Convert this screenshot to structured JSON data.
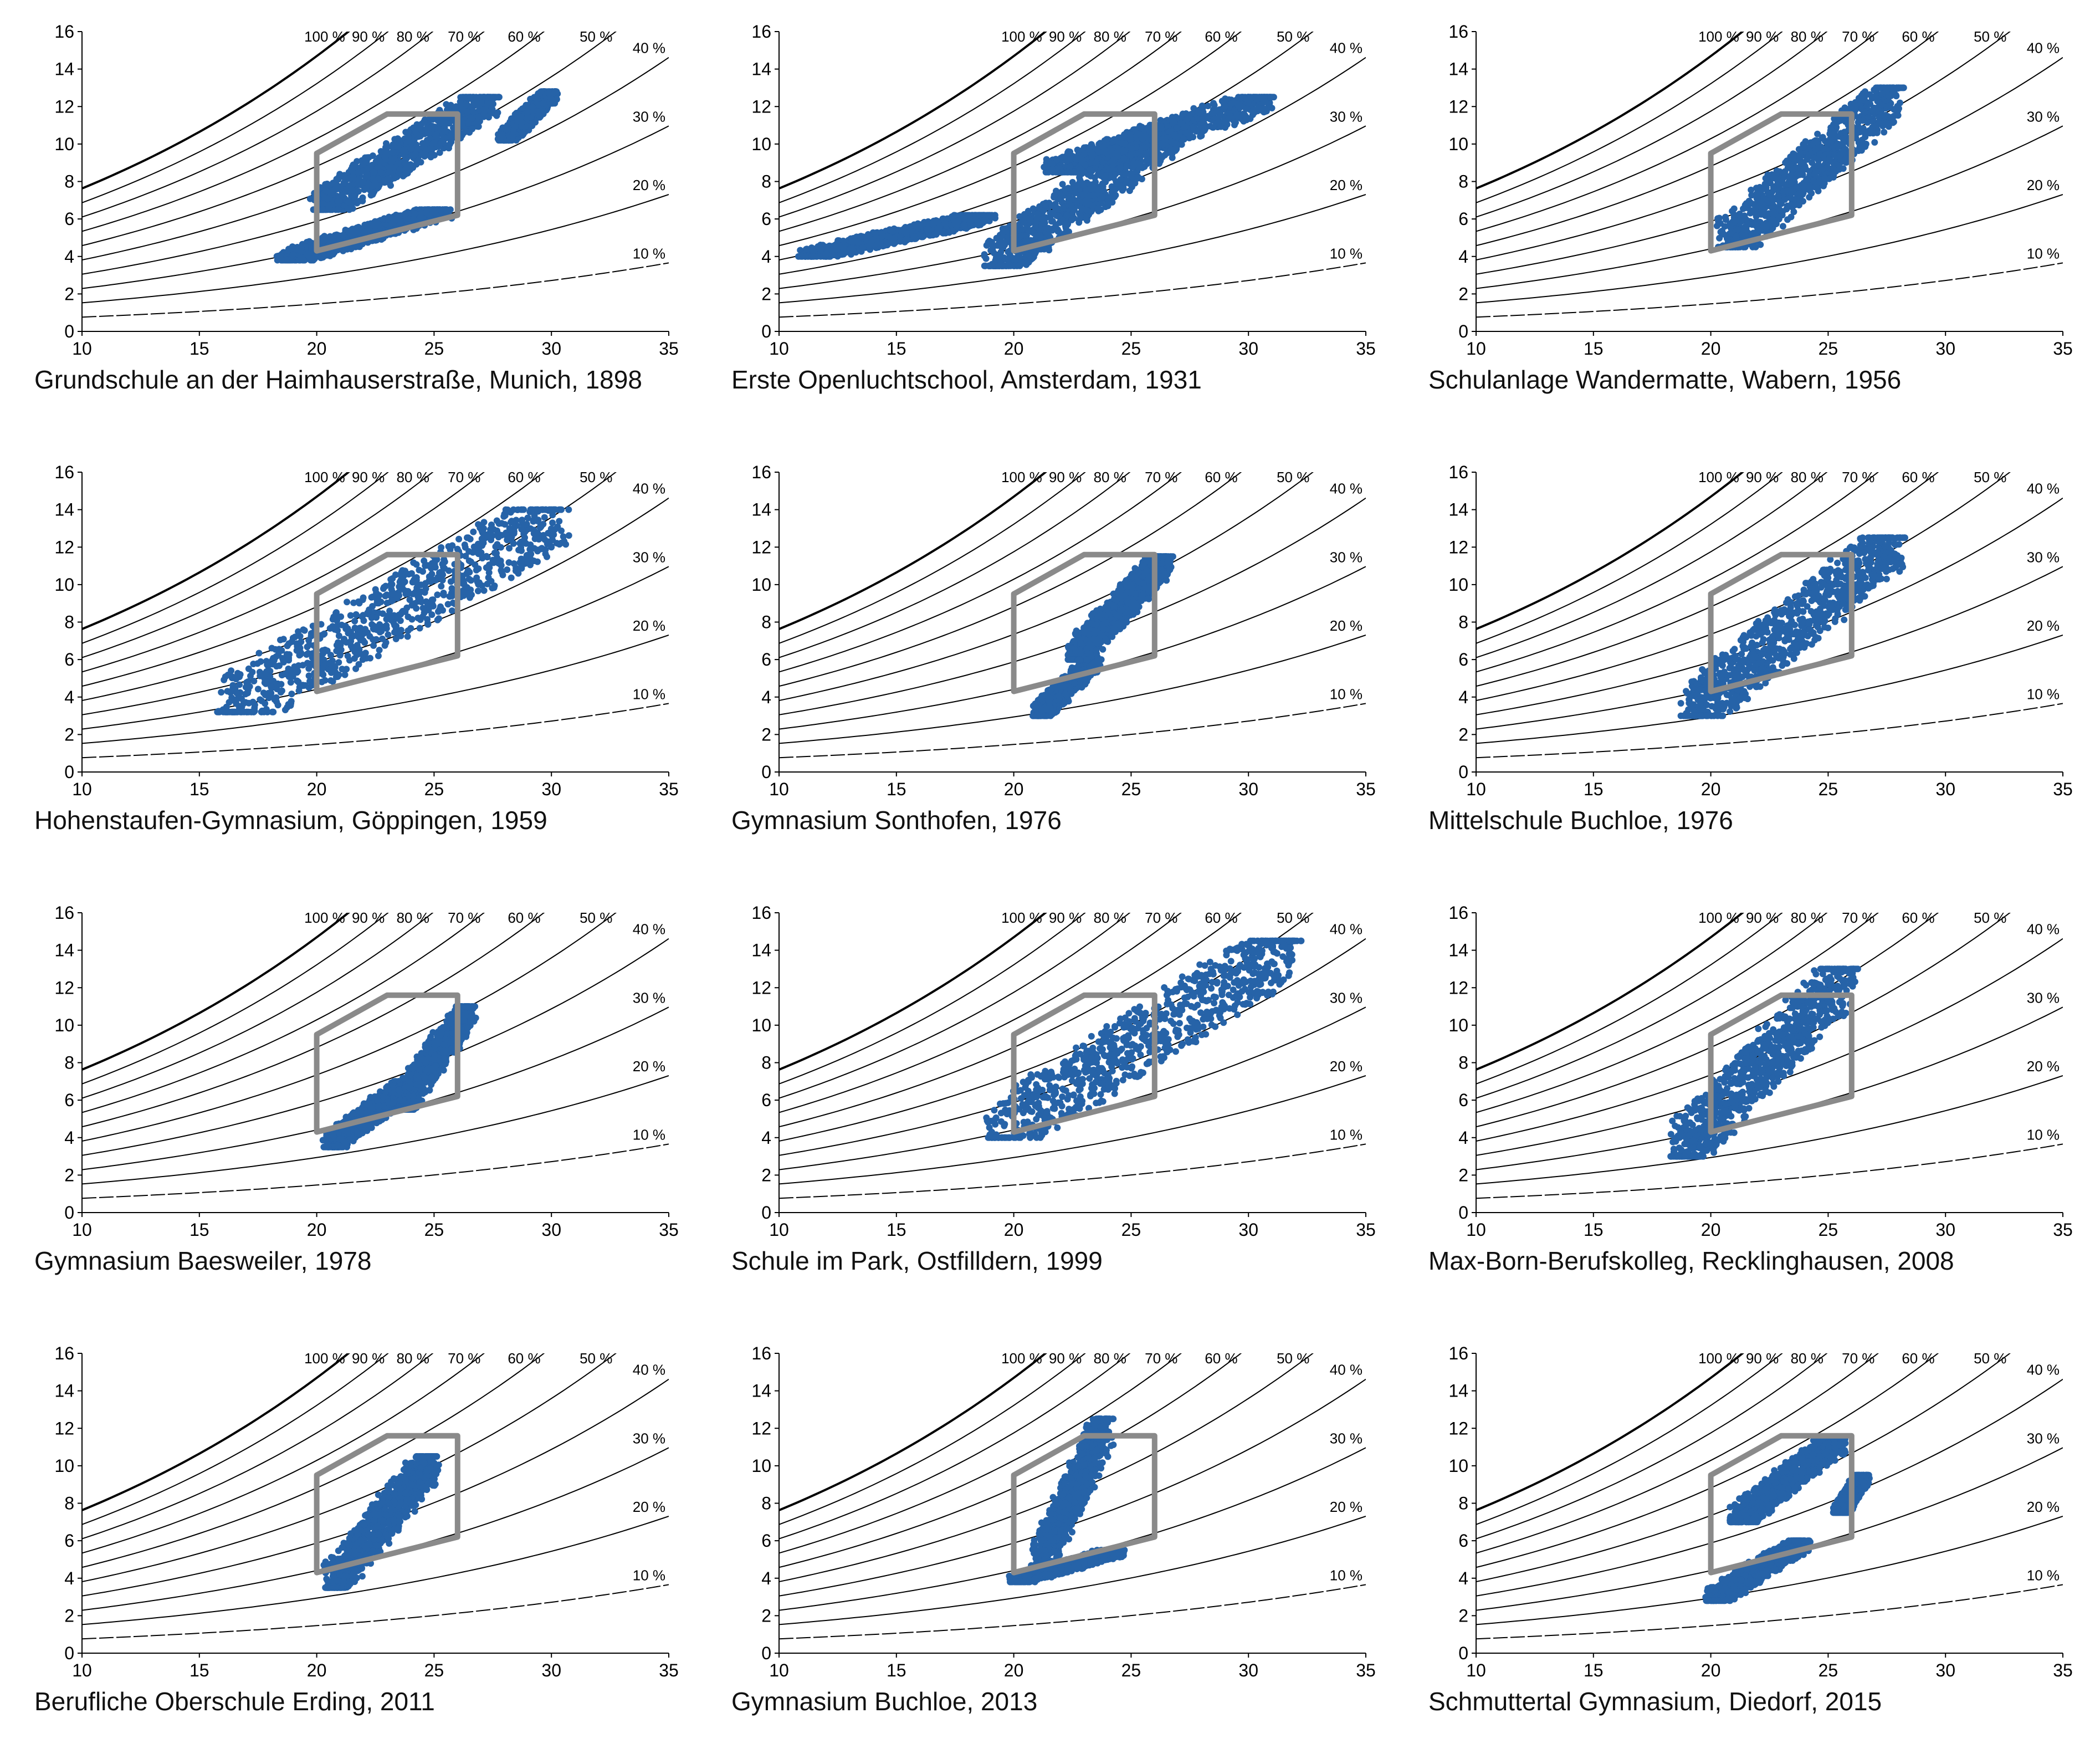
{
  "colors": {
    "scatter": "#2663a8",
    "comfort_zone": "#8a8a8a",
    "curves": "#000000",
    "axes": "#000000",
    "background": "#ffffff"
  },
  "axes": {
    "x_ticks": [
      "10",
      "15",
      "20",
      "25",
      "30",
      "35"
    ],
    "y_ticks": [
      "0",
      "2",
      "4",
      "6",
      "8",
      "10",
      "12",
      "14",
      "16"
    ],
    "xlim": [
      10,
      35
    ],
    "ylim": [
      0,
      16
    ]
  },
  "humidity_curves": {
    "levels": [
      100,
      90,
      80,
      70,
      60,
      50,
      40,
      30,
      20,
      10
    ],
    "labels": [
      "100 %",
      "90 %",
      "80 %",
      "70 %",
      "60 %",
      "50 %",
      "40 %",
      "30 %",
      "20 %",
      "10 %"
    ]
  },
  "comfort_polygon": [
    [
      20,
      4.3
    ],
    [
      20,
      9.5
    ],
    [
      23,
      11.6
    ],
    [
      26,
      11.6
    ],
    [
      26,
      6.2
    ]
  ],
  "chart_data": [
    {
      "type": "scatter",
      "title": "Grundschule an der Haimhauserstraße, Munich, 1898",
      "xlabel": "",
      "ylabel": "",
      "xlim": [
        10,
        35
      ],
      "ylim": [
        0,
        16
      ],
      "clusters": [
        {
          "x": [
            18.5,
            25.5
          ],
          "y": [
            3.8,
            6.5
          ],
          "slope": 0.45
        },
        {
          "x": [
            20,
            27.5
          ],
          "y": [
            6.5,
            12.5
          ],
          "slope": 0.6
        },
        {
          "x": [
            28,
            30
          ],
          "y": [
            10.2,
            12.8
          ],
          "slope": 0.5
        }
      ]
    },
    {
      "type": "scatter",
      "title": "Erste Openluchtschool, Amsterdam, 1931",
      "xlabel": "",
      "ylabel": "",
      "xlim": [
        10,
        35
      ],
      "ylim": [
        0,
        16
      ],
      "clusters": [
        {
          "x": [
            19,
            27
          ],
          "y": [
            3.5,
            11
          ],
          "slope": 0.8
        },
        {
          "x": [
            21.5,
            31
          ],
          "y": [
            8.5,
            12.5
          ],
          "slope": 0.3
        },
        {
          "x": [
            11,
            19
          ],
          "y": [
            4,
            6.2
          ],
          "slope": 0.1
        }
      ]
    },
    {
      "type": "scatter",
      "title": "Schulanlage Wandermatte, Wabern, 1956",
      "xlabel": "",
      "ylabel": "",
      "xlim": [
        10,
        35
      ],
      "ylim": [
        0,
        16
      ],
      "clusters": [
        {
          "x": [
            20.5,
            28
          ],
          "y": [
            4.5,
            13
          ],
          "slope": 1.1
        }
      ]
    },
    {
      "type": "scatter",
      "title": "Hohenstaufen-Gymnasium, Göppingen, 1959",
      "xlabel": "",
      "ylabel": "",
      "xlim": [
        10,
        35
      ],
      "ylim": [
        0,
        16
      ],
      "clusters": [
        {
          "x": [
            16,
            30.5
          ],
          "y": [
            3.2,
            14
          ],
          "slope": 0.75
        }
      ]
    },
    {
      "type": "scatter",
      "title": "Gymnasium Sonthofen, 1976",
      "xlabel": "",
      "ylabel": "",
      "xlim": [
        10,
        35
      ],
      "ylim": [
        0,
        16
      ],
      "clusters": [
        {
          "x": [
            21,
            23.5
          ],
          "y": [
            3,
            6
          ],
          "slope": 1.2
        },
        {
          "x": [
            22.5,
            26.5
          ],
          "y": [
            6,
            11.5
          ],
          "slope": 1.1
        }
      ]
    },
    {
      "type": "scatter",
      "title": "Mittelschule Buchloe, 1976",
      "xlabel": "",
      "ylabel": "",
      "xlim": [
        10,
        35
      ],
      "ylim": [
        0,
        16
      ],
      "clusters": [
        {
          "x": [
            19,
            28
          ],
          "y": [
            3,
            12.5
          ],
          "slope": 1.05
        }
      ]
    },
    {
      "type": "scatter",
      "title": "Gymnasium Baesweiler, 1978",
      "xlabel": "",
      "ylabel": "",
      "xlim": [
        10,
        35
      ],
      "ylim": [
        0,
        16
      ],
      "clusters": [
        {
          "x": [
            20.5,
            24
          ],
          "y": [
            3.5,
            7
          ],
          "slope": 0.6
        },
        {
          "x": [
            23.5,
            26.5
          ],
          "y": [
            5.5,
            11
          ],
          "slope": 1.6
        }
      ]
    },
    {
      "type": "scatter",
      "title": "Schule im Park, Ostfilldern, 1999",
      "xlabel": "",
      "ylabel": "",
      "xlim": [
        10,
        35
      ],
      "ylim": [
        0,
        16
      ],
      "clusters": [
        {
          "x": [
            19,
            32
          ],
          "y": [
            4,
            14.5
          ],
          "slope": 0.8
        }
      ]
    },
    {
      "type": "scatter",
      "title": "Max-Born-Berufskolleg, Recklinghausen, 2008",
      "xlabel": "",
      "ylabel": "",
      "xlim": [
        10,
        35
      ],
      "ylim": [
        0,
        16
      ],
      "clusters": [
        {
          "x": [
            18.5,
            26
          ],
          "y": [
            3,
            13
          ],
          "slope": 1.25
        }
      ]
    },
    {
      "type": "scatter",
      "title": "Berufliche Oberschule Erding, 2011",
      "xlabel": "",
      "ylabel": "",
      "xlim": [
        10,
        35
      ],
      "ylim": [
        0,
        16
      ],
      "clusters": [
        {
          "x": [
            20.5,
            25
          ],
          "y": [
            3.5,
            10.5
          ],
          "slope": 1.4
        }
      ]
    },
    {
      "type": "scatter",
      "title": "Gymnasium Buchloe, 2013",
      "xlabel": "",
      "ylabel": "",
      "xlim": [
        10,
        35
      ],
      "ylim": [
        0,
        16
      ],
      "clusters": [
        {
          "x": [
            21,
            24
          ],
          "y": [
            4.5,
            12.5
          ],
          "slope": 2.5
        },
        {
          "x": [
            20,
            24.5
          ],
          "y": [
            3.8,
            5.5
          ],
          "slope": 0.2
        }
      ]
    },
    {
      "type": "scatter",
      "title": "Schmuttertal Gymnasium, Diedorf, 2015",
      "xlabel": "",
      "ylabel": "",
      "xlim": [
        10,
        35
      ],
      "ylim": [
        0,
        16
      ],
      "clusters": [
        {
          "x": [
            20,
            24
          ],
          "y": [
            2.8,
            6
          ],
          "slope": 0.5
        },
        {
          "x": [
            21,
            25.5
          ],
          "y": [
            7,
            11.5
          ],
          "slope": 0.9
        },
        {
          "x": [
            25.5,
            26.5
          ],
          "y": [
            7.5,
            9.5
          ],
          "slope": 0.5
        }
      ]
    }
  ]
}
